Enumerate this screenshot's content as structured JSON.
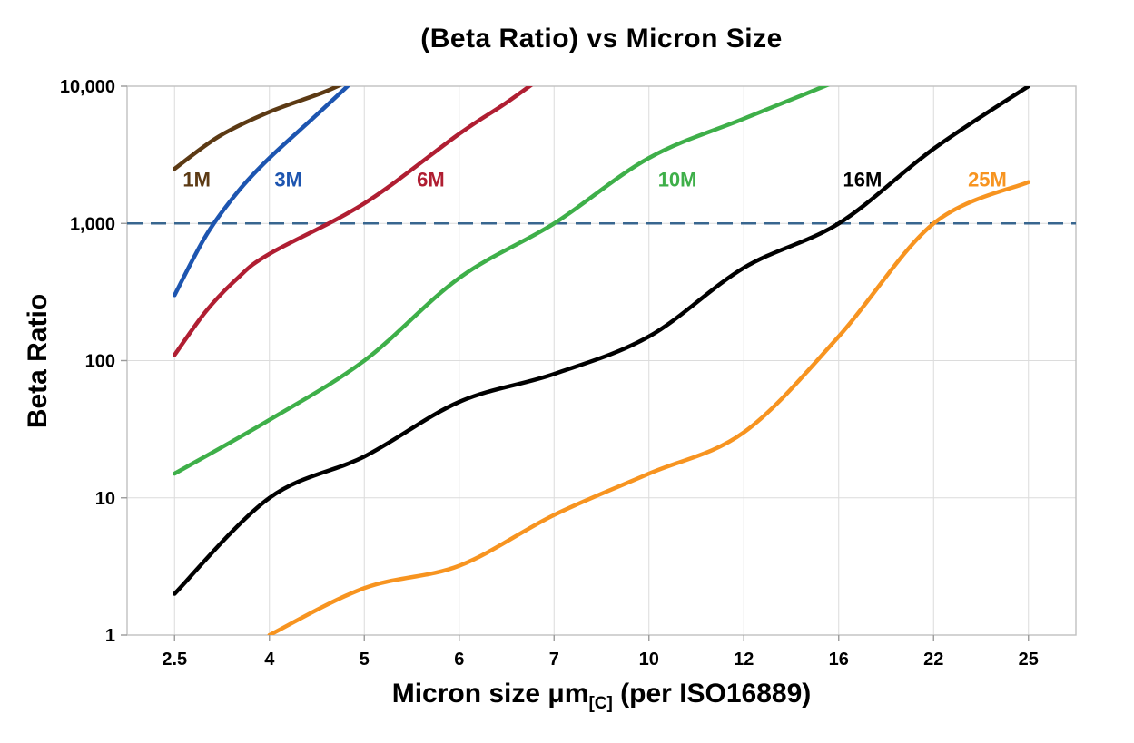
{
  "chart_data": {
    "type": "line",
    "title": "(Beta Ratio) vs Micron Size",
    "x_axis": {
      "title_main": "Micron size μm",
      "title_sub": "[C]",
      "title_rest": " (per ISO16889)",
      "tick_labels": [
        "2.5",
        "4",
        "5",
        "6",
        "7",
        "10",
        "12",
        "16",
        "22",
        "25"
      ],
      "category_values": [
        2.5,
        4,
        5,
        6,
        7,
        10,
        12,
        16,
        22,
        25
      ]
    },
    "y_axis": {
      "title": "Beta Ratio",
      "scale": "log",
      "range": [
        1,
        10000
      ],
      "ticks": [
        {
          "value": 1,
          "label": "1"
        },
        {
          "value": 10,
          "label": "10"
        },
        {
          "value": 100,
          "label": "100"
        },
        {
          "value": 1000,
          "label": "1,000"
        },
        {
          "value": 10000,
          "label": "10,000"
        }
      ]
    },
    "reference_line": {
      "value": 1000,
      "color": "#38668f",
      "style": "dashed"
    },
    "grid": {
      "line_color": "#dcdcdc",
      "border_color": "#c0c0c0",
      "tick_color": "#9a9a9a"
    },
    "series": [
      {
        "name": "1M",
        "color": "#5c3a14",
        "label_pos": {
          "x": 2.85,
          "y": 2100
        },
        "points": [
          [
            2.5,
            2500
          ],
          [
            3.2,
            4300
          ],
          [
            4,
            6500
          ],
          [
            4.6,
            9200
          ],
          [
            5,
            12500
          ]
        ]
      },
      {
        "name": "3M",
        "color": "#1d55b0",
        "label_pos": {
          "x": 4.2,
          "y": 2100
        },
        "points": [
          [
            2.5,
            300
          ],
          [
            3,
            820
          ],
          [
            3.5,
            1700
          ],
          [
            4,
            3000
          ],
          [
            4.5,
            6200
          ],
          [
            5,
            13000
          ]
        ]
      },
      {
        "name": "6M",
        "color": "#b01e32",
        "label_pos": {
          "x": 5.7,
          "y": 2100
        },
        "points": [
          [
            2.5,
            110
          ],
          [
            3,
            230
          ],
          [
            3.5,
            400
          ],
          [
            4,
            600
          ],
          [
            5,
            1400
          ],
          [
            6,
            4500
          ],
          [
            6.5,
            7600
          ],
          [
            7,
            13500
          ]
        ]
      },
      {
        "name": "10M",
        "color": "#3eaf49",
        "label_pos": {
          "x": 10.6,
          "y": 2100
        },
        "points": [
          [
            2.5,
            15
          ],
          [
            4,
            37
          ],
          [
            5,
            100
          ],
          [
            6,
            400
          ],
          [
            7,
            1000
          ],
          [
            10,
            3000
          ],
          [
            12,
            5800
          ],
          [
            16,
            11000
          ]
        ]
      },
      {
        "name": "16M",
        "color": "#000000",
        "label_pos": {
          "x": 17.5,
          "y": 2100
        },
        "points": [
          [
            2.5,
            2
          ],
          [
            4,
            10
          ],
          [
            5,
            20
          ],
          [
            6,
            50
          ],
          [
            7,
            80
          ],
          [
            10,
            150
          ],
          [
            12,
            475
          ],
          [
            16,
            1000
          ],
          [
            22,
            3500
          ],
          [
            25,
            10000
          ]
        ]
      },
      {
        "name": "25M",
        "color": "#f79420",
        "label_pos": {
          "x": 23.7,
          "y": 2100
        },
        "points": [
          [
            4,
            1
          ],
          [
            5,
            2.2
          ],
          [
            6,
            3.2
          ],
          [
            7,
            7.5
          ],
          [
            10,
            15
          ],
          [
            12,
            30
          ],
          [
            16,
            150
          ],
          [
            22,
            1000
          ],
          [
            25,
            2000
          ]
        ]
      }
    ]
  }
}
